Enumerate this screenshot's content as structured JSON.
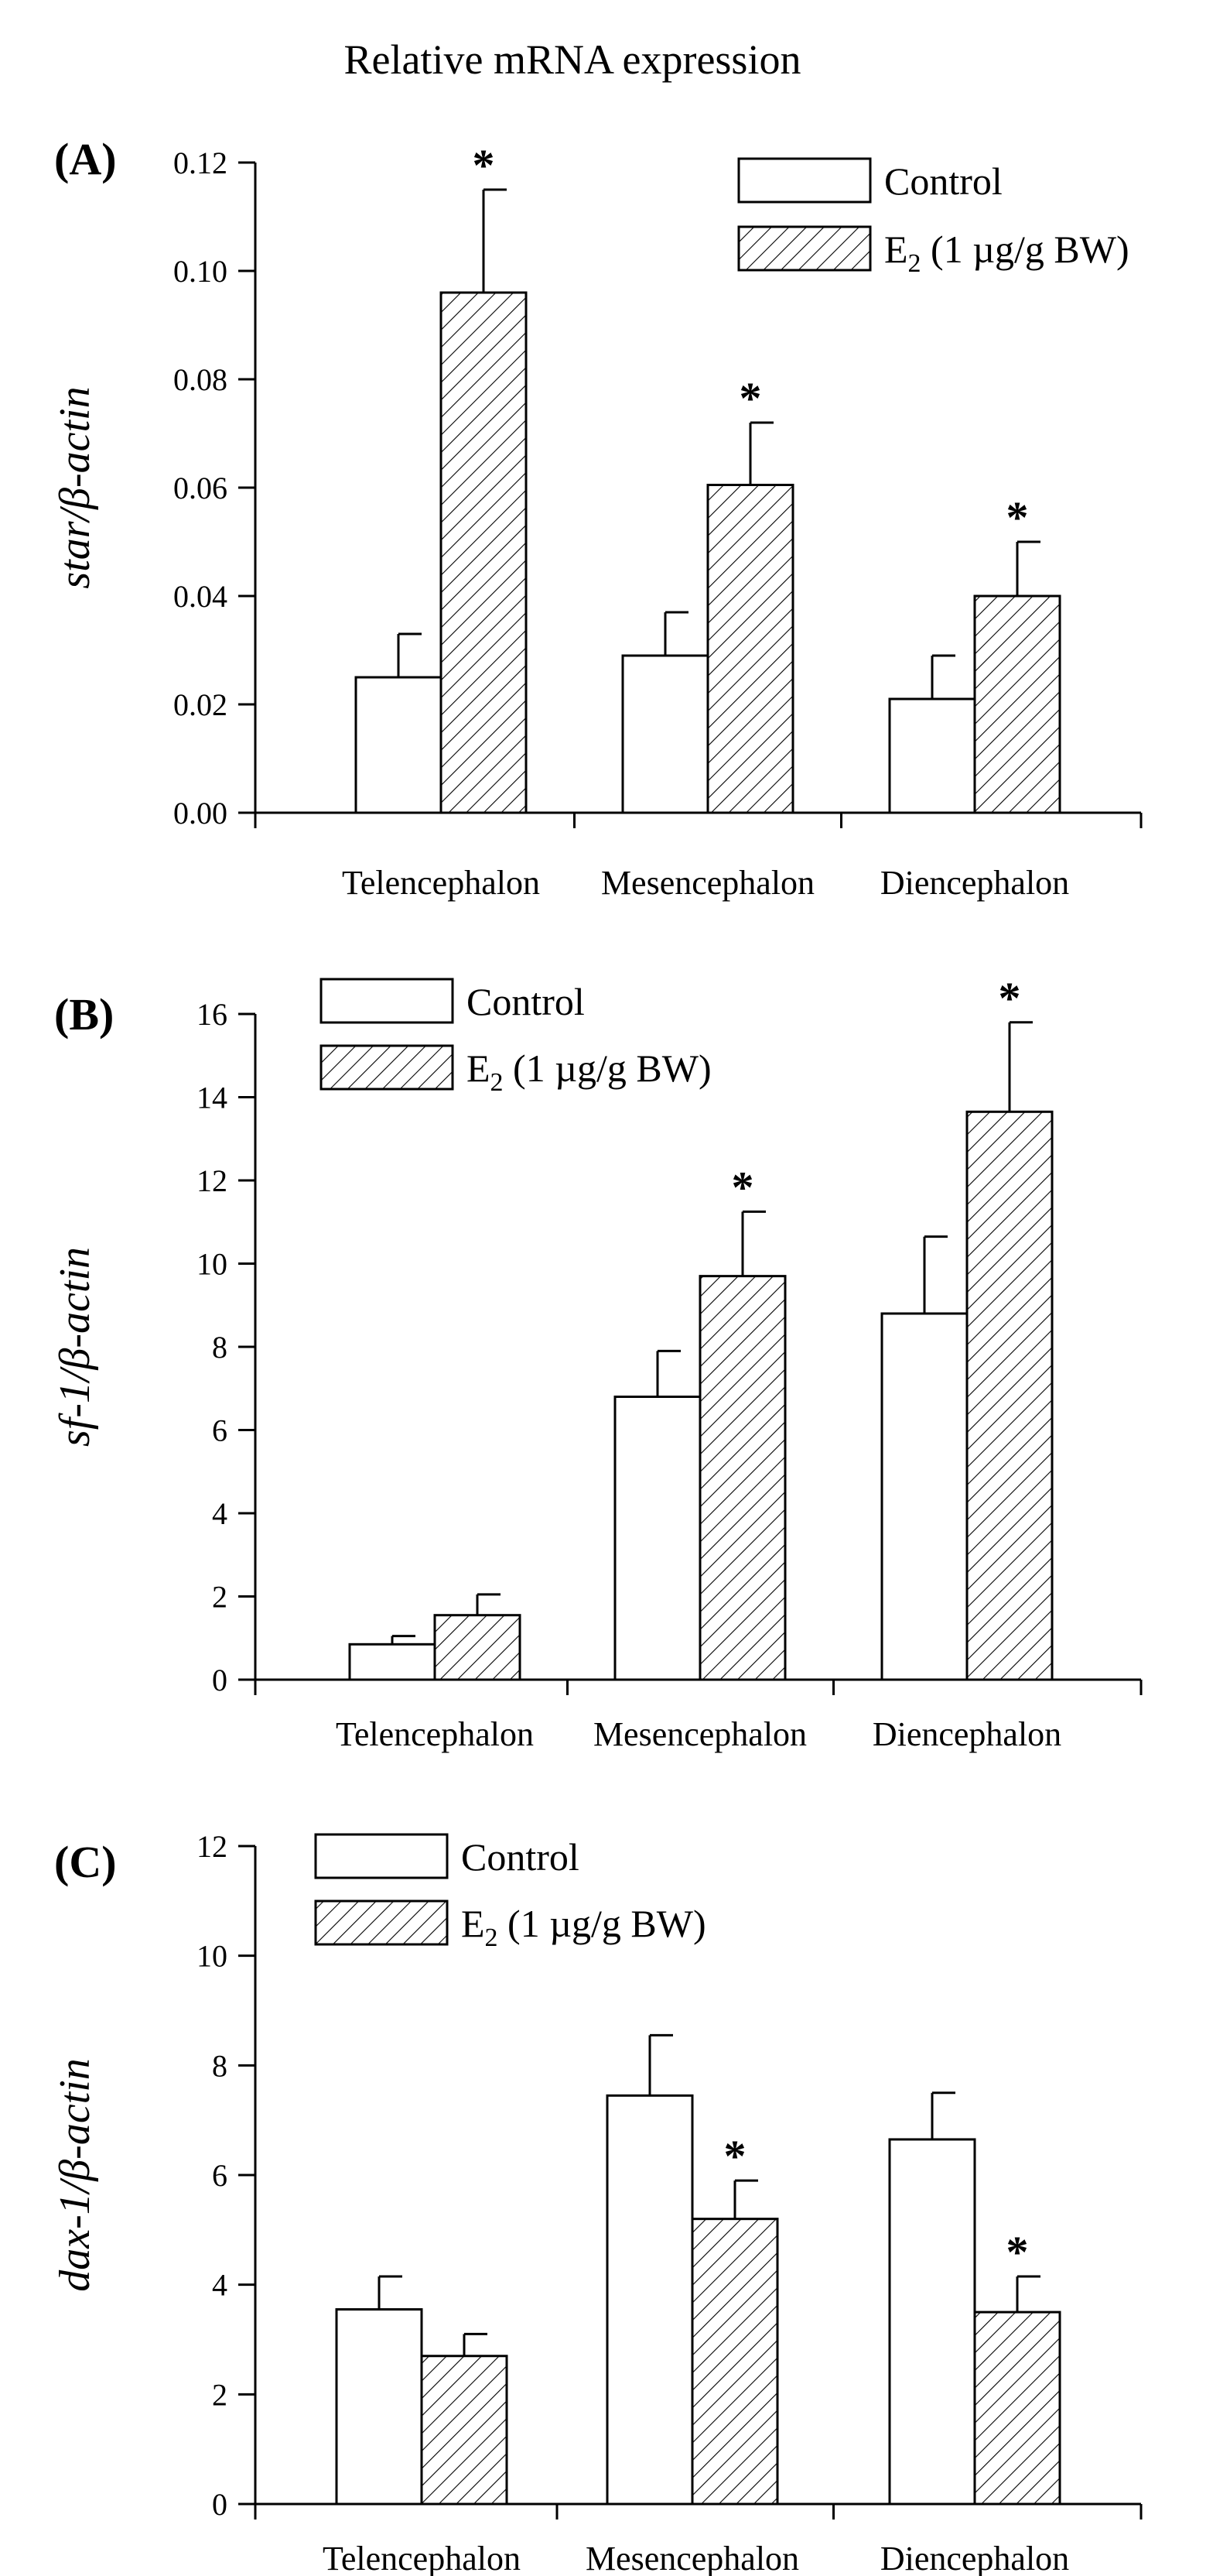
{
  "figure_title": "Relative mRNA expression",
  "legend": {
    "control": "Control",
    "e2_main": "E",
    "e2_sub": "2",
    "e2_rest": " (1 µg/g BW)"
  },
  "colors": {
    "control_fill": "#ffffff",
    "hatch": "#000000",
    "axis": "#000000"
  },
  "chart_data": [
    {
      "type": "bar",
      "panel_label": "(A)",
      "ylabel": "star/β-actin",
      "ylim": [
        0,
        0.12
      ],
      "yticks": [
        "0.00",
        "0.02",
        "0.04",
        "0.06",
        "0.08",
        "0.10",
        "0.12"
      ],
      "categories": [
        "Telencephalon",
        "Mesencephalon",
        "Diencephalon"
      ],
      "series": [
        {
          "name": "Control",
          "values": [
            0.025,
            0.029,
            0.021
          ],
          "errors": [
            0.008,
            0.008,
            0.008
          ]
        },
        {
          "name": "E2 (1 µg/g BW)",
          "values": [
            0.096,
            0.0605,
            0.04
          ],
          "errors": [
            0.019,
            0.0115,
            0.01
          ]
        }
      ],
      "significance": [
        "*",
        "*",
        "*"
      ],
      "legend_position": "top-right"
    },
    {
      "type": "bar",
      "panel_label": "(B)",
      "ylabel": "sf-1/β-actin",
      "ylim": [
        0,
        16
      ],
      "yticks": [
        "0",
        "2",
        "4",
        "6",
        "8",
        "10",
        "12",
        "14",
        "16"
      ],
      "categories": [
        "Telencephalon",
        "Mesencephalon",
        "Diencephalon"
      ],
      "series": [
        {
          "name": "Control",
          "values": [
            0.85,
            6.8,
            8.8
          ],
          "errors": [
            0.2,
            1.1,
            1.85
          ]
        },
        {
          "name": "E2 (1 µg/g BW)",
          "values": [
            1.55,
            9.7,
            13.65
          ],
          "errors": [
            0.5,
            1.55,
            2.15
          ]
        }
      ],
      "significance": [
        "",
        "*",
        "*"
      ],
      "legend_position": "top-left"
    },
    {
      "type": "bar",
      "panel_label": "(C)",
      "ylabel": "dax-1/β-actin",
      "ylim": [
        0,
        12
      ],
      "yticks": [
        "0",
        "2",
        "4",
        "6",
        "8",
        "10",
        "12"
      ],
      "categories": [
        "Telencephalon",
        "Mesencephalon",
        "Diencephalon"
      ],
      "series": [
        {
          "name": "Control",
          "values": [
            3.55,
            7.45,
            6.65
          ],
          "errors": [
            0.6,
            1.1,
            0.85
          ]
        },
        {
          "name": "E2 (1 µg/g BW)",
          "values": [
            2.7,
            5.2,
            3.5
          ],
          "errors": [
            0.4,
            0.7,
            0.65
          ]
        }
      ],
      "significance": [
        "",
        "*",
        "*"
      ],
      "legend_position": "top-left"
    }
  ]
}
